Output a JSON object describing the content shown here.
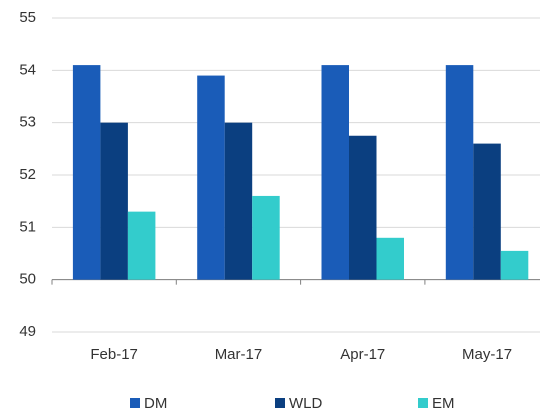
{
  "chart_data": {
    "type": "bar",
    "categories": [
      "Feb-17",
      "Mar-17",
      "Apr-17",
      "May-17"
    ],
    "series": [
      {
        "name": "DM",
        "color": "#1a5cb8",
        "values": [
          54.1,
          53.9,
          54.1,
          54.1
        ]
      },
      {
        "name": "WLD",
        "color": "#0b3f80",
        "values": [
          53.0,
          53.0,
          52.75,
          52.6
        ]
      },
      {
        "name": "EM",
        "color": "#33cccc",
        "values": [
          51.3,
          51.6,
          50.8,
          50.55
        ]
      }
    ],
    "ylim": [
      49,
      55
    ],
    "yticks": [
      49,
      50,
      51,
      52,
      53,
      54,
      55
    ],
    "baseline": 50,
    "grid": true,
    "legend": "bottom"
  }
}
